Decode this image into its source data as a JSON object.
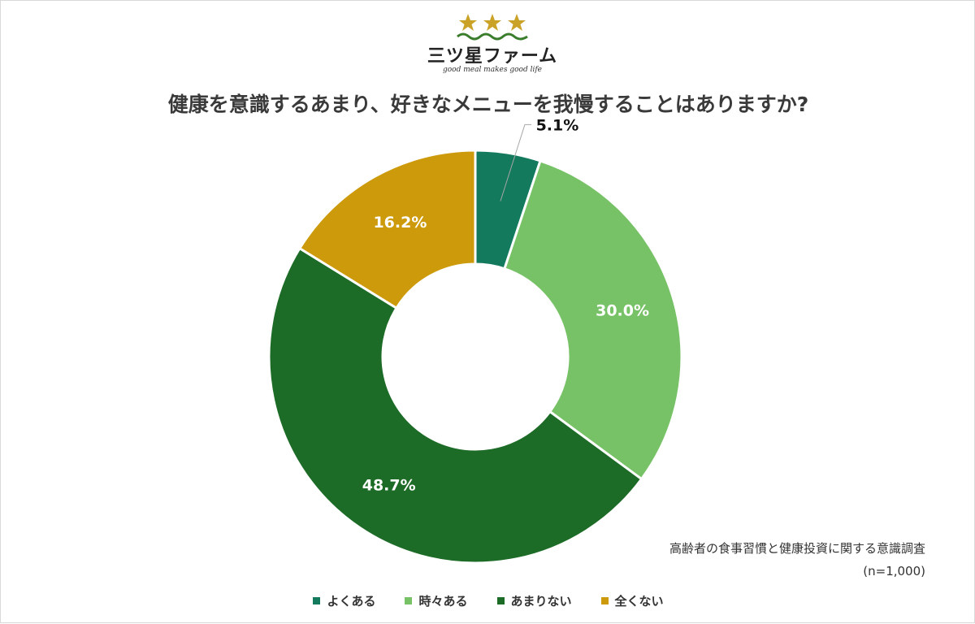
{
  "logo": {
    "name": "三ツ星ファーム",
    "tagline": "good meal makes good life",
    "star_color": "#c9a227",
    "wave_color": "#3a7d2c"
  },
  "title": "健康を意識するあまり、好きなメニューを我慢することはありますか?",
  "source": {
    "line1": "高齢者の食事習慣と健康投資に関する意識調査",
    "line2": "(n=1,000)"
  },
  "chart_data": {
    "type": "pie",
    "donut": true,
    "start_angle_deg": 0,
    "direction": "clockwise",
    "series": [
      {
        "name": "よくある",
        "value": 5.1,
        "label": "5.1%",
        "color": "#147a5e",
        "label_placement": "outside-leader"
      },
      {
        "name": "時々ある",
        "value": 30.0,
        "label": "30.0%",
        "color": "#77c266",
        "label_placement": "inside"
      },
      {
        "name": "あまりない",
        "value": 48.7,
        "label": "48.7%",
        "color": "#1c6b26",
        "label_placement": "inside"
      },
      {
        "name": "全くない",
        "value": 16.2,
        "label": "16.2%",
        "color": "#cc9a0a",
        "label_placement": "inside"
      }
    ],
    "legend_position": "bottom"
  }
}
